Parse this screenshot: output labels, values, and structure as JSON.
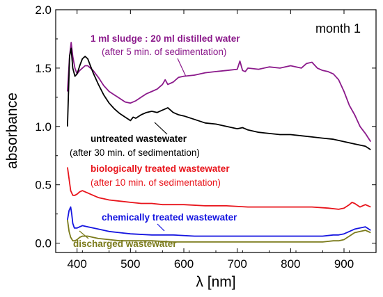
{
  "chart_data": {
    "type": "line",
    "title": "month 1",
    "xlabel": "λ [nm]",
    "ylabel": "absorbance",
    "xlim": [
      360,
      960
    ],
    "ylim": [
      -0.08,
      2.0
    ],
    "xticks": [
      400,
      500,
      600,
      700,
      800,
      900
    ],
    "yticks": [
      0.0,
      0.5,
      1.0,
      1.5,
      2.0
    ],
    "ytick_labels": [
      "0.0",
      "0.5",
      "1.0",
      "1.5",
      "2.0"
    ],
    "grid": false,
    "legend": "none",
    "series": [
      {
        "color": "#8b1a8b",
        "x": [
          382,
          386,
          389,
          392,
          396,
          400,
          405,
          410,
          415,
          420,
          430,
          440,
          450,
          460,
          470,
          480,
          490,
          500,
          510,
          520,
          530,
          540,
          550,
          560,
          565,
          570,
          580,
          590,
          600,
          620,
          640,
          660,
          680,
          700,
          705,
          710,
          715,
          720,
          740,
          760,
          780,
          800,
          820,
          830,
          840,
          850,
          860,
          870,
          880,
          890,
          900,
          910,
          920,
          930,
          940,
          950
        ],
        "y": [
          1.3,
          1.6,
          1.72,
          1.6,
          1.5,
          1.45,
          1.48,
          1.5,
          1.52,
          1.52,
          1.48,
          1.42,
          1.35,
          1.3,
          1.27,
          1.24,
          1.21,
          1.2,
          1.22,
          1.25,
          1.28,
          1.3,
          1.32,
          1.36,
          1.4,
          1.36,
          1.38,
          1.42,
          1.43,
          1.44,
          1.46,
          1.47,
          1.48,
          1.49,
          1.56,
          1.48,
          1.47,
          1.5,
          1.49,
          1.51,
          1.5,
          1.52,
          1.5,
          1.54,
          1.55,
          1.5,
          1.48,
          1.47,
          1.45,
          1.4,
          1.3,
          1.18,
          1.1,
          1.0,
          0.94,
          0.87
        ]
      },
      {
        "color": "#000000",
        "x": [
          382,
          386,
          389,
          392,
          396,
          400,
          405,
          410,
          415,
          420,
          425,
          430,
          440,
          450,
          460,
          470,
          480,
          490,
          500,
          505,
          510,
          520,
          530,
          540,
          550,
          560,
          570,
          580,
          590,
          600,
          620,
          640,
          660,
          680,
          700,
          710,
          720,
          740,
          760,
          780,
          800,
          820,
          840,
          860,
          880,
          900,
          920,
          940,
          950
        ],
        "y": [
          1.0,
          1.6,
          1.67,
          1.5,
          1.43,
          1.45,
          1.52,
          1.58,
          1.6,
          1.58,
          1.52,
          1.46,
          1.36,
          1.27,
          1.2,
          1.15,
          1.11,
          1.08,
          1.05,
          1.08,
          1.07,
          1.1,
          1.12,
          1.13,
          1.12,
          1.14,
          1.16,
          1.12,
          1.1,
          1.09,
          1.06,
          1.03,
          1.02,
          1.0,
          0.98,
          0.99,
          0.97,
          0.95,
          0.94,
          0.93,
          0.93,
          0.92,
          0.91,
          0.9,
          0.89,
          0.87,
          0.85,
          0.83,
          0.8
        ]
      },
      {
        "color": "#e8141b",
        "x": [
          382,
          385,
          388,
          392,
          396,
          400,
          405,
          410,
          415,
          420,
          430,
          440,
          450,
          460,
          480,
          500,
          520,
          540,
          560,
          580,
          600,
          640,
          680,
          720,
          760,
          800,
          840,
          870,
          890,
          900,
          910,
          915,
          920,
          930,
          940,
          950
        ],
        "y": [
          0.65,
          0.55,
          0.45,
          0.41,
          0.41,
          0.42,
          0.44,
          0.45,
          0.44,
          0.43,
          0.41,
          0.39,
          0.38,
          0.37,
          0.36,
          0.35,
          0.34,
          0.34,
          0.33,
          0.33,
          0.33,
          0.32,
          0.32,
          0.31,
          0.31,
          0.31,
          0.31,
          0.3,
          0.29,
          0.3,
          0.33,
          0.35,
          0.34,
          0.31,
          0.33,
          0.31
        ]
      },
      {
        "color": "#1515e0",
        "x": [
          382,
          385,
          388,
          390,
          392,
          395,
          400,
          405,
          410,
          420,
          430,
          440,
          460,
          480,
          500,
          540,
          580,
          620,
          660,
          700,
          740,
          780,
          820,
          860,
          880,
          890,
          900,
          910,
          920,
          930,
          940,
          950
        ],
        "y": [
          0.2,
          0.28,
          0.31,
          0.25,
          0.17,
          0.13,
          0.13,
          0.14,
          0.15,
          0.14,
          0.13,
          0.12,
          0.1,
          0.09,
          0.08,
          0.07,
          0.07,
          0.06,
          0.06,
          0.06,
          0.06,
          0.06,
          0.06,
          0.06,
          0.07,
          0.07,
          0.08,
          0.1,
          0.12,
          0.13,
          0.14,
          0.11
        ]
      },
      {
        "color": "#7a7a1a",
        "x": [
          382,
          385,
          388,
          392,
          396,
          400,
          405,
          410,
          420,
          430,
          440,
          460,
          480,
          500,
          540,
          580,
          620,
          660,
          700,
          740,
          780,
          820,
          860,
          880,
          890,
          900,
          910,
          920,
          930,
          940,
          950
        ],
        "y": [
          0.2,
          0.1,
          0.05,
          0.02,
          0.02,
          0.03,
          0.05,
          0.06,
          0.06,
          0.05,
          0.04,
          0.03,
          0.02,
          0.02,
          0.02,
          0.01,
          0.01,
          0.01,
          0.01,
          0.01,
          0.01,
          0.01,
          0.01,
          0.02,
          0.02,
          0.03,
          0.06,
          0.09,
          0.1,
          0.11,
          0.09
        ]
      }
    ],
    "annotations": [
      {
        "lines": [
          "1 ml sludge : 20 ml distilled water",
          "(after 5 min. of sedimentation)"
        ],
        "color": "#8b1a8b"
      },
      {
        "lines": [
          "untreated wastewater",
          "(after 30 min. of sedimentation)"
        ],
        "color": "#000000"
      },
      {
        "lines": [
          "biologically treated wastewater",
          "(after 10 min. of sedimentation)"
        ],
        "color": "#e8141b"
      },
      {
        "lines": [
          "chemically treated wastewater"
        ],
        "color": "#1515e0"
      },
      {
        "lines": [
          "discharged wastewater"
        ],
        "color": "#7a7a1a"
      }
    ]
  }
}
